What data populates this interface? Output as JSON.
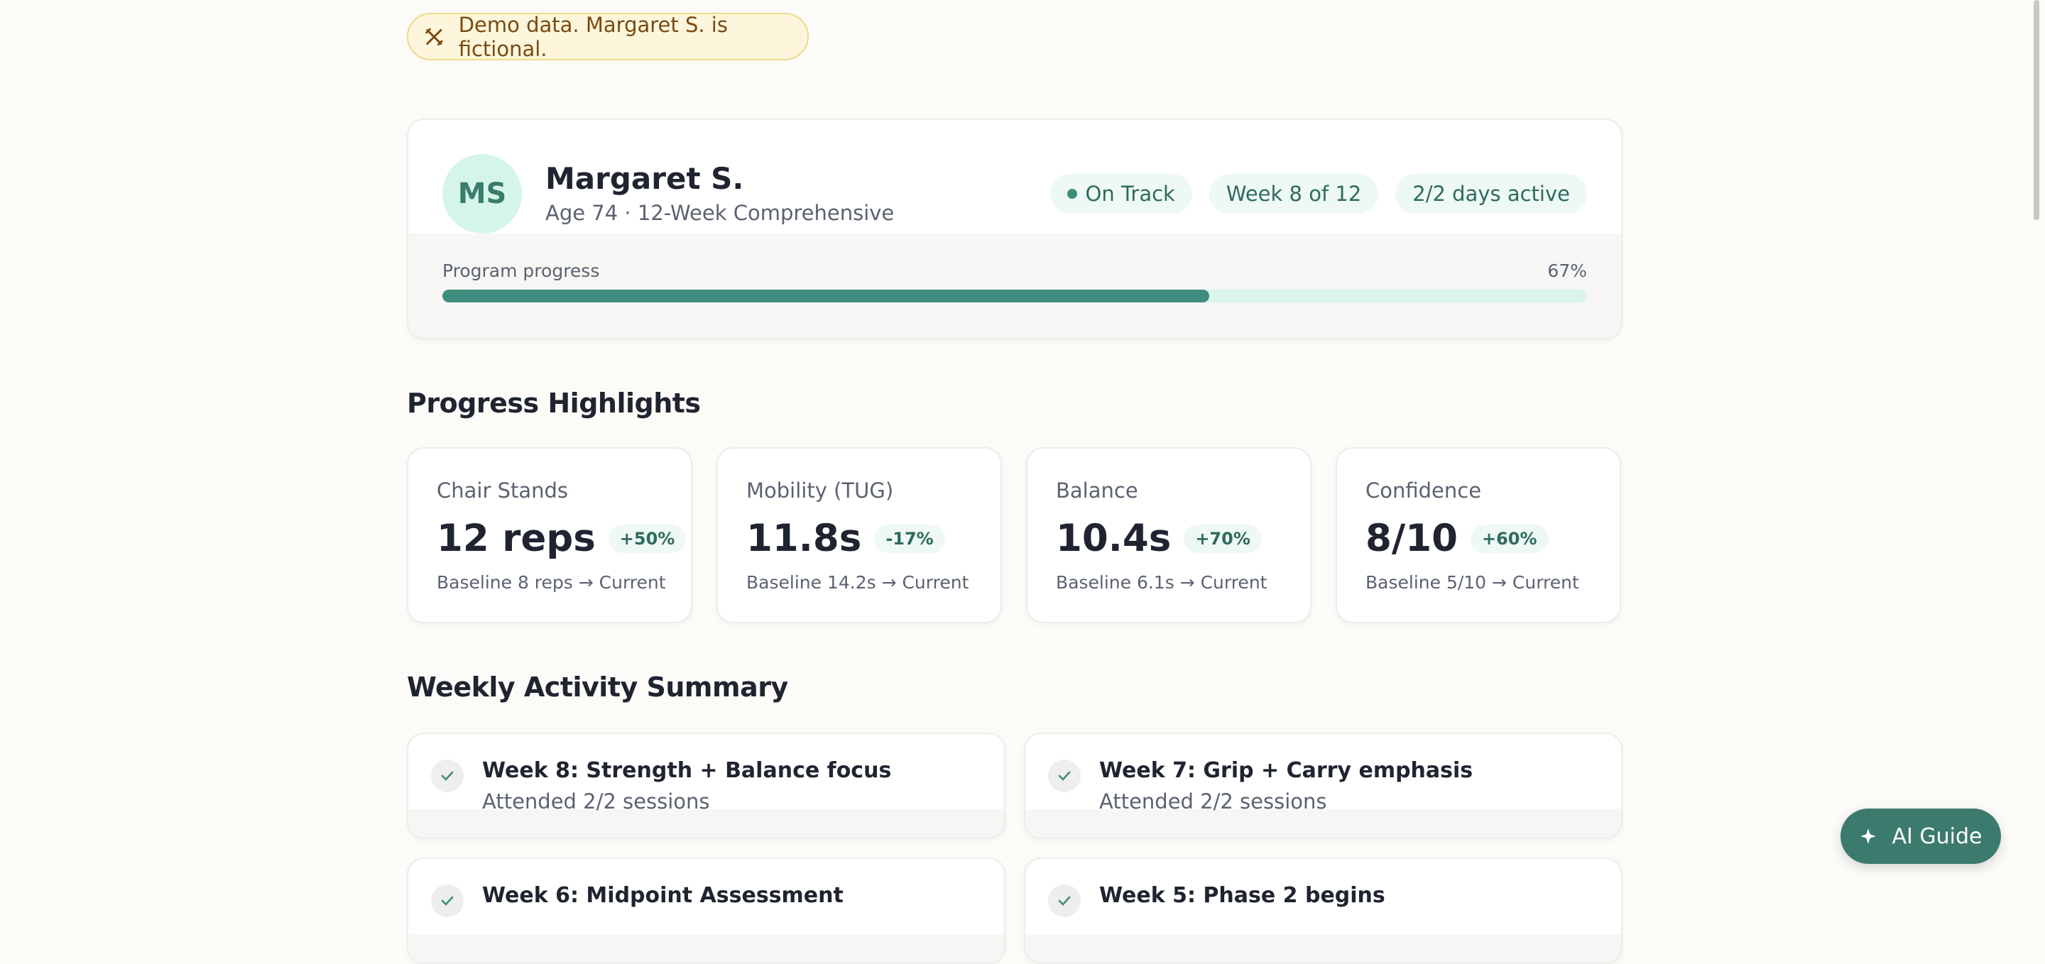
{
  "banner": {
    "text": "Demo data. Margaret S. is fictional."
  },
  "profile": {
    "initials": "MS",
    "name": "Margaret S.",
    "subtitle": "Age 74 · 12-Week Comprehensive",
    "badges": [
      "On Track",
      "Week 8 of 12",
      "2/2 days active"
    ],
    "progress": {
      "label": "Program progress",
      "value": 67,
      "value_label": "67%"
    }
  },
  "highlights": {
    "title": "Progress Highlights",
    "cards": [
      {
        "title": "Chair Stands",
        "value": "12 reps",
        "change": "+50%",
        "note": "Baseline 8 reps → Current"
      },
      {
        "title": "Mobility (TUG)",
        "value": "11.8s",
        "change": "-17%",
        "note": "Baseline 14.2s → Current"
      },
      {
        "title": "Balance",
        "value": "10.4s",
        "change": "+70%",
        "note": "Baseline 6.1s → Current"
      },
      {
        "title": "Confidence",
        "value": "8/10",
        "change": "+60%",
        "note": "Baseline 5/10 → Current"
      }
    ]
  },
  "weekly": {
    "title": "Weekly Activity Summary",
    "items": [
      {
        "title": "Week 8: Strength + Balance focus",
        "subtitle": "Attended 2/2 sessions"
      },
      {
        "title": "Week 7: Grip + Carry emphasis",
        "subtitle": "Attended 2/2 sessions"
      },
      {
        "title": "Week 6: Midpoint Assessment"
      },
      {
        "title": "Week 5: Phase 2 begins"
      }
    ]
  },
  "ai_guide": {
    "label": "AI Guide"
  }
}
